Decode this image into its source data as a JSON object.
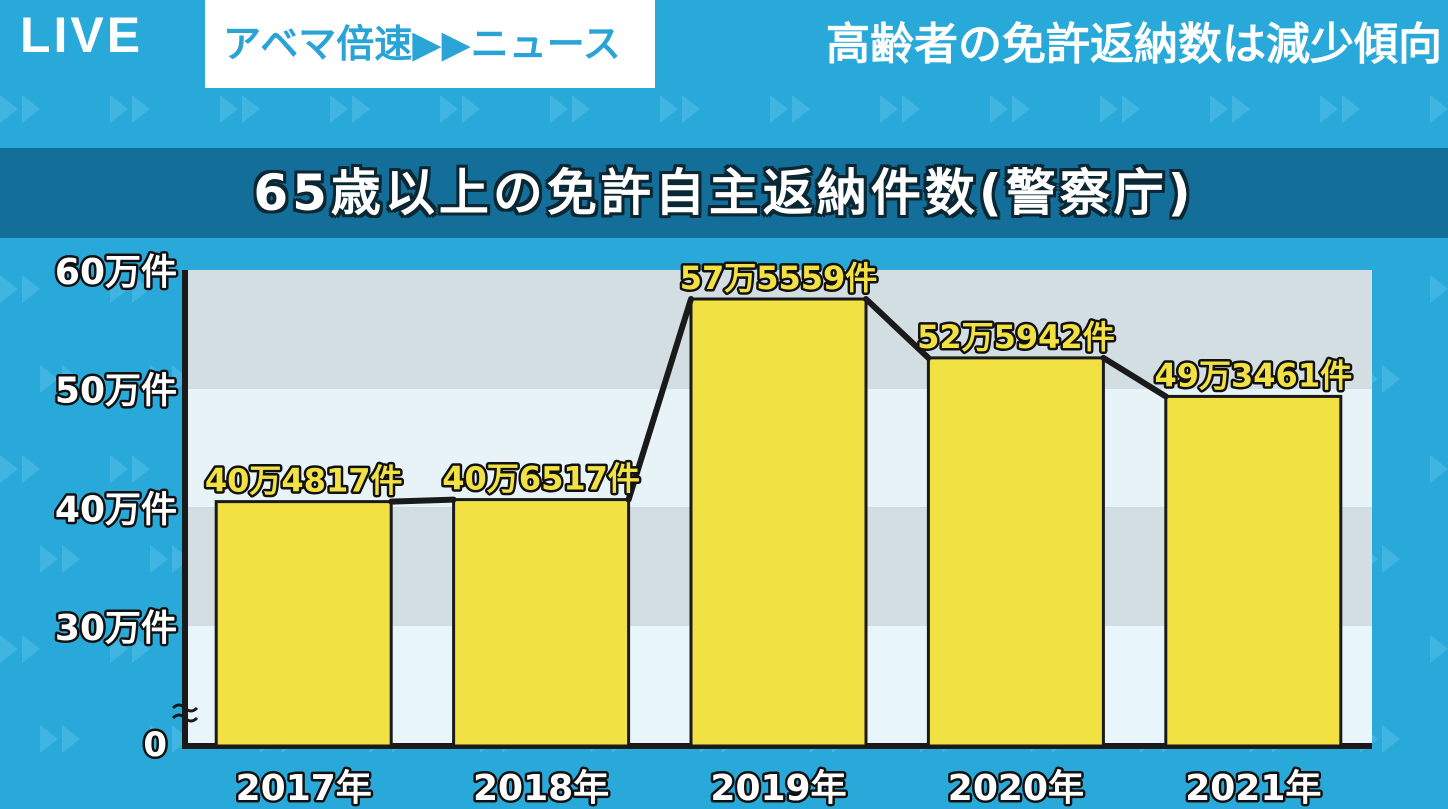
{
  "header": {
    "live_label": "LIVE",
    "channel_name": "アベマ倍速▶▶ニュース",
    "headline": "高齢者の免許返納数は減少傾向"
  },
  "colors": {
    "background": "#29a9d9",
    "title_band": "#136f99",
    "bar_fill": "#f2e142",
    "label_text": "#f2e142",
    "axis": "#1a1a1a"
  },
  "chart_data": {
    "type": "bar",
    "title": "65歳以上の免許自主返納件数(警察庁)",
    "categories": [
      "2017年",
      "2018年",
      "2019年",
      "2020年",
      "2021年"
    ],
    "values": [
      404817,
      406517,
      575559,
      525942,
      493461
    ],
    "value_labels": [
      "40万4817件",
      "40万6517件",
      "57万5559件",
      "52万5942件",
      "49万3461件"
    ],
    "y_ticks": [
      {
        "value": 300000,
        "label": "30万件"
      },
      {
        "value": 400000,
        "label": "40万件"
      },
      {
        "value": 500000,
        "label": "50万件"
      },
      {
        "value": 600000,
        "label": "60万件"
      }
    ],
    "y_zero_label": "0",
    "ylim": [
      0,
      600000
    ],
    "axis_break": true,
    "connector_line": true,
    "grid": true
  }
}
